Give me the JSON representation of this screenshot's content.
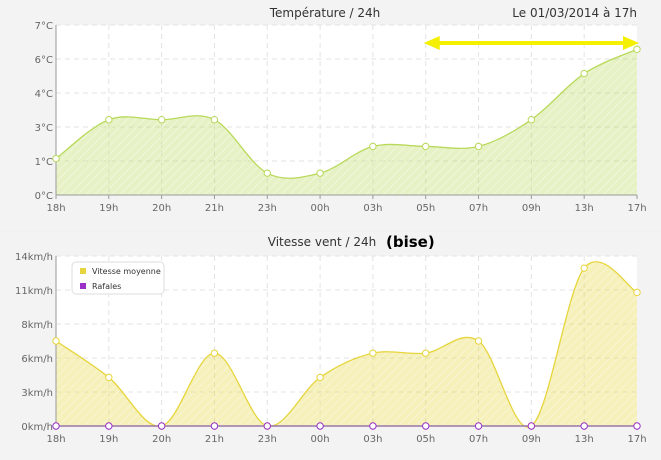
{
  "chart_data": [
    {
      "type": "area",
      "title": "Température / 24h",
      "timestamp": "Le 01/03/2014 à 17h",
      "categories": [
        "18h",
        "19h",
        "20h",
        "21h",
        "23h",
        "00h",
        "03h",
        "05h",
        "07h",
        "09h",
        "13h",
        "17h"
      ],
      "yticks": [
        "0°C",
        "1°C",
        "3°C",
        "4°C",
        "6°C",
        "7°C"
      ],
      "ylim": [
        0,
        7
      ],
      "grid": true,
      "series": [
        {
          "values": [
            1.5,
            3.1,
            3.1,
            3.1,
            0.9,
            0.9,
            2.0,
            2.0,
            2.0,
            3.1,
            5.0,
            6.0
          ],
          "color": "#b8d95a"
        }
      ],
      "annotation": {
        "type": "double-arrow",
        "from_category": "05h",
        "to_category": "17h",
        "color": "#f4f000"
      }
    },
    {
      "type": "area",
      "title": "Vitesse vent / 24h",
      "title_note": "(bise)",
      "categories": [
        "18h",
        "19h",
        "20h",
        "21h",
        "23h",
        "00h",
        "03h",
        "05h",
        "07h",
        "09h",
        "13h",
        "17h"
      ],
      "yticks": [
        "0km/h",
        "3km/h",
        "6km/h",
        "8km/h",
        "11km/h",
        "14km/h"
      ],
      "ylim": [
        0,
        14
      ],
      "grid": true,
      "legend": {
        "position": "top-left"
      },
      "series": [
        {
          "name": "Vitesse moyenne",
          "values": [
            7.0,
            4.0,
            0,
            6.0,
            0,
            4.0,
            6.0,
            6.0,
            7.0,
            0,
            13.0,
            11.0
          ],
          "color": "#e6d53c"
        },
        {
          "name": "Rafales",
          "values": [
            0,
            0,
            0,
            0,
            0,
            0,
            0,
            0,
            0,
            0,
            0,
            0
          ],
          "color": "#9b30c8"
        }
      ]
    }
  ]
}
